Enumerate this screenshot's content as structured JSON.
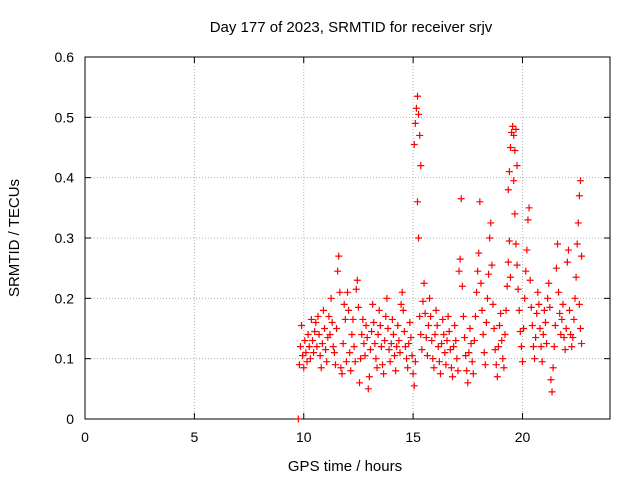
{
  "chart_data": {
    "type": "scatter",
    "title": "Day 177 of 2023, SRMTID for receiver srjv",
    "xlabel": "GPS time / hours",
    "ylabel": "SRMTID / TECUs",
    "xlim": [
      0,
      24
    ],
    "ylim": [
      0,
      0.6
    ],
    "xticks": [
      0,
      5,
      10,
      15,
      20
    ],
    "yticks": [
      0,
      0.1,
      0.2,
      0.3,
      0.4,
      0.5,
      0.6
    ],
    "xtick_labels": [
      "0",
      "5",
      "10",
      "15",
      "20"
    ],
    "ytick_labels": [
      "0",
      "0.1",
      "0.2",
      "0.3",
      "0.4",
      "0.5",
      "0.6"
    ],
    "grid": true,
    "marker_color": "#ff0000",
    "series": [
      {
        "name": "SRMTID",
        "marker": "+",
        "points": [
          [
            9.75,
            0.0
          ],
          [
            9.8,
            0.09
          ],
          [
            9.85,
            0.12
          ],
          [
            9.9,
            0.155
          ],
          [
            9.95,
            0.105
          ],
          [
            10.0,
            0.085
          ],
          [
            10.05,
            0.13
          ],
          [
            10.1,
            0.11
          ],
          [
            10.15,
            0.095
          ],
          [
            10.2,
            0.14
          ],
          [
            10.25,
            0.12
          ],
          [
            10.3,
            0.1
          ],
          [
            10.35,
            0.165
          ],
          [
            10.4,
            0.13
          ],
          [
            10.45,
            0.11
          ],
          [
            10.5,
            0.145
          ],
          [
            10.55,
            0.16
          ],
          [
            10.6,
            0.12
          ],
          [
            10.65,
            0.17
          ],
          [
            10.7,
            0.14
          ],
          [
            10.75,
            0.105
          ],
          [
            10.8,
            0.085
          ],
          [
            10.85,
            0.125
          ],
          [
            10.9,
            0.18
          ],
          [
            10.95,
            0.15
          ],
          [
            11.0,
            0.115
          ],
          [
            11.05,
            0.095
          ],
          [
            11.1,
            0.135
          ],
          [
            11.15,
            0.17
          ],
          [
            11.2,
            0.14
          ],
          [
            11.25,
            0.2
          ],
          [
            11.3,
            0.16
          ],
          [
            11.35,
            0.12
          ],
          [
            11.4,
            0.11
          ],
          [
            11.45,
            0.09
          ],
          [
            11.5,
            0.15
          ],
          [
            11.55,
            0.245
          ],
          [
            11.6,
            0.27
          ],
          [
            11.65,
            0.21
          ],
          [
            11.7,
            0.085
          ],
          [
            11.75,
            0.075
          ],
          [
            11.8,
            0.125
          ],
          [
            11.85,
            0.19
          ],
          [
            11.9,
            0.165
          ],
          [
            11.95,
            0.095
          ],
          [
            12.0,
            0.21
          ],
          [
            12.05,
            0.18
          ],
          [
            12.1,
            0.11
          ],
          [
            12.15,
            0.08
          ],
          [
            12.2,
            0.14
          ],
          [
            12.25,
            0.165
          ],
          [
            12.3,
            0.12
          ],
          [
            12.35,
            0.095
          ],
          [
            12.4,
            0.215
          ],
          [
            12.45,
            0.23
          ],
          [
            12.5,
            0.185
          ],
          [
            12.55,
            0.06
          ],
          [
            12.6,
            0.1
          ],
          [
            12.65,
            0.14
          ],
          [
            12.7,
            0.165
          ],
          [
            12.75,
            0.125
          ],
          [
            12.8,
            0.105
          ],
          [
            12.85,
            0.155
          ],
          [
            12.9,
            0.135
          ],
          [
            12.95,
            0.05
          ],
          [
            13.0,
            0.07
          ],
          [
            13.05,
            0.115
          ],
          [
            13.1,
            0.145
          ],
          [
            13.15,
            0.19
          ],
          [
            13.2,
            0.16
          ],
          [
            13.25,
            0.125
          ],
          [
            13.3,
            0.1
          ],
          [
            13.35,
            0.085
          ],
          [
            13.4,
            0.14
          ],
          [
            13.45,
            0.18
          ],
          [
            13.5,
            0.155
          ],
          [
            13.55,
            0.12
          ],
          [
            13.6,
            0.09
          ],
          [
            13.65,
            0.075
          ],
          [
            13.7,
            0.13
          ],
          [
            13.75,
            0.17
          ],
          [
            13.8,
            0.2
          ],
          [
            13.85,
            0.15
          ],
          [
            13.9,
            0.115
          ],
          [
            13.95,
            0.095
          ],
          [
            14.0,
            0.125
          ],
          [
            14.05,
            0.165
          ],
          [
            14.1,
            0.14
          ],
          [
            14.15,
            0.105
          ],
          [
            14.2,
            0.08
          ],
          [
            14.25,
            0.12
          ],
          [
            14.3,
            0.155
          ],
          [
            14.35,
            0.13
          ],
          [
            14.4,
            0.11
          ],
          [
            14.45,
            0.19
          ],
          [
            14.5,
            0.21
          ],
          [
            14.55,
            0.18
          ],
          [
            14.6,
            0.145
          ],
          [
            14.65,
            0.12
          ],
          [
            14.7,
            0.1
          ],
          [
            14.75,
            0.085
          ],
          [
            14.8,
            0.125
          ],
          [
            14.85,
            0.16
          ],
          [
            14.9,
            0.135
          ],
          [
            14.95,
            0.105
          ],
          [
            15.0,
            0.075
          ],
          [
            15.05,
            0.055
          ],
          [
            15.1,
            0.095
          ],
          [
            15.05,
            0.455
          ],
          [
            15.1,
            0.49
          ],
          [
            15.15,
            0.515
          ],
          [
            15.2,
            0.535
          ],
          [
            15.25,
            0.505
          ],
          [
            15.3,
            0.47
          ],
          [
            15.35,
            0.42
          ],
          [
            15.2,
            0.36
          ],
          [
            15.25,
            0.3
          ],
          [
            15.3,
            0.17
          ],
          [
            15.35,
            0.14
          ],
          [
            15.4,
            0.115
          ],
          [
            15.45,
            0.195
          ],
          [
            15.5,
            0.225
          ],
          [
            15.55,
            0.175
          ],
          [
            15.6,
            0.135
          ],
          [
            15.65,
            0.105
          ],
          [
            15.7,
            0.155
          ],
          [
            15.75,
            0.2
          ],
          [
            15.8,
            0.17
          ],
          [
            15.85,
            0.13
          ],
          [
            15.9,
            0.1
          ],
          [
            15.95,
            0.085
          ],
          [
            16.0,
            0.14
          ],
          [
            16.05,
            0.18
          ],
          [
            16.1,
            0.155
          ],
          [
            16.15,
            0.12
          ],
          [
            16.2,
            0.095
          ],
          [
            16.25,
            0.075
          ],
          [
            16.3,
            0.125
          ],
          [
            16.35,
            0.165
          ],
          [
            16.4,
            0.14
          ],
          [
            16.45,
            0.11
          ],
          [
            16.5,
            0.09
          ],
          [
            16.55,
            0.13
          ],
          [
            16.6,
            0.17
          ],
          [
            16.65,
            0.145
          ],
          [
            16.7,
            0.115
          ],
          [
            16.75,
            0.085
          ],
          [
            16.8,
            0.07
          ],
          [
            16.85,
            0.12
          ],
          [
            16.9,
            0.155
          ],
          [
            16.95,
            0.13
          ],
          [
            17.0,
            0.1
          ],
          [
            17.05,
            0.08
          ],
          [
            17.1,
            0.245
          ],
          [
            17.15,
            0.265
          ],
          [
            17.2,
            0.365
          ],
          [
            17.25,
            0.22
          ],
          [
            17.3,
            0.17
          ],
          [
            17.35,
            0.135
          ],
          [
            17.4,
            0.105
          ],
          [
            17.45,
            0.08
          ],
          [
            17.5,
            0.06
          ],
          [
            17.55,
            0.11
          ],
          [
            17.6,
            0.15
          ],
          [
            17.65,
            0.125
          ],
          [
            17.7,
            0.095
          ],
          [
            17.75,
            0.075
          ],
          [
            17.8,
            0.13
          ],
          [
            17.85,
            0.17
          ],
          [
            17.9,
            0.21
          ],
          [
            17.95,
            0.245
          ],
          [
            18.0,
            0.275
          ],
          [
            18.05,
            0.36
          ],
          [
            18.1,
            0.225
          ],
          [
            18.15,
            0.18
          ],
          [
            18.2,
            0.14
          ],
          [
            18.25,
            0.11
          ],
          [
            18.3,
            0.09
          ],
          [
            18.35,
            0.16
          ],
          [
            18.4,
            0.2
          ],
          [
            18.45,
            0.24
          ],
          [
            18.5,
            0.3
          ],
          [
            18.55,
            0.325
          ],
          [
            18.6,
            0.255
          ],
          [
            18.65,
            0.19
          ],
          [
            18.7,
            0.15
          ],
          [
            18.75,
            0.115
          ],
          [
            18.8,
            0.09
          ],
          [
            18.85,
            0.07
          ],
          [
            18.9,
            0.12
          ],
          [
            18.95,
            0.155
          ],
          [
            19.0,
            0.175
          ],
          [
            19.05,
            0.13
          ],
          [
            19.1,
            0.1
          ],
          [
            19.15,
            0.085
          ],
          [
            19.2,
            0.14
          ],
          [
            19.25,
            0.18
          ],
          [
            19.3,
            0.22
          ],
          [
            19.35,
            0.26
          ],
          [
            19.4,
            0.295
          ],
          [
            19.45,
            0.235
          ],
          [
            19.35,
            0.38
          ],
          [
            19.4,
            0.41
          ],
          [
            19.45,
            0.45
          ],
          [
            19.5,
            0.475
          ],
          [
            19.55,
            0.485
          ],
          [
            19.6,
            0.47
          ],
          [
            19.65,
            0.445
          ],
          [
            19.7,
            0.48
          ],
          [
            19.75,
            0.42
          ],
          [
            19.6,
            0.395
          ],
          [
            19.65,
            0.34
          ],
          [
            19.7,
            0.29
          ],
          [
            19.75,
            0.255
          ],
          [
            19.8,
            0.215
          ],
          [
            19.85,
            0.18
          ],
          [
            19.9,
            0.145
          ],
          [
            19.95,
            0.12
          ],
          [
            20.0,
            0.095
          ],
          [
            20.05,
            0.15
          ],
          [
            20.1,
            0.2
          ],
          [
            20.15,
            0.245
          ],
          [
            20.2,
            0.28
          ],
          [
            20.25,
            0.33
          ],
          [
            20.3,
            0.35
          ],
          [
            20.35,
            0.23
          ],
          [
            20.4,
            0.185
          ],
          [
            20.45,
            0.155
          ],
          [
            20.5,
            0.12
          ],
          [
            20.55,
            0.1
          ],
          [
            20.6,
            0.135
          ],
          [
            20.65,
            0.175
          ],
          [
            20.7,
            0.21
          ],
          [
            20.75,
            0.19
          ],
          [
            20.8,
            0.15
          ],
          [
            20.85,
            0.12
          ],
          [
            20.9,
            0.095
          ],
          [
            20.95,
            0.14
          ],
          [
            21.0,
            0.18
          ],
          [
            21.05,
            0.16
          ],
          [
            21.1,
            0.125
          ],
          [
            21.15,
            0.2
          ],
          [
            21.2,
            0.225
          ],
          [
            21.25,
            0.185
          ],
          [
            21.3,
            0.065
          ],
          [
            21.35,
            0.045
          ],
          [
            21.4,
            0.085
          ],
          [
            21.45,
            0.12
          ],
          [
            21.5,
            0.155
          ],
          [
            21.55,
            0.25
          ],
          [
            21.6,
            0.29
          ],
          [
            21.65,
            0.21
          ],
          [
            21.7,
            0.175
          ],
          [
            21.75,
            0.14
          ],
          [
            21.8,
            0.165
          ],
          [
            21.85,
            0.19
          ],
          [
            21.9,
            0.135
          ],
          [
            21.95,
            0.115
          ],
          [
            22.0,
            0.15
          ],
          [
            22.05,
            0.26
          ],
          [
            22.1,
            0.28
          ],
          [
            22.15,
            0.18
          ],
          [
            22.2,
            0.14
          ],
          [
            22.25,
            0.12
          ],
          [
            22.3,
            0.135
          ],
          [
            22.35,
            0.165
          ],
          [
            22.4,
            0.2
          ],
          [
            22.45,
            0.235
          ],
          [
            22.5,
            0.29
          ],
          [
            22.55,
            0.325
          ],
          [
            22.6,
            0.37
          ],
          [
            22.65,
            0.395
          ],
          [
            22.7,
            0.27
          ],
          [
            22.6,
            0.19
          ],
          [
            22.65,
            0.15
          ],
          [
            22.7,
            0.125
          ]
        ]
      }
    ]
  }
}
